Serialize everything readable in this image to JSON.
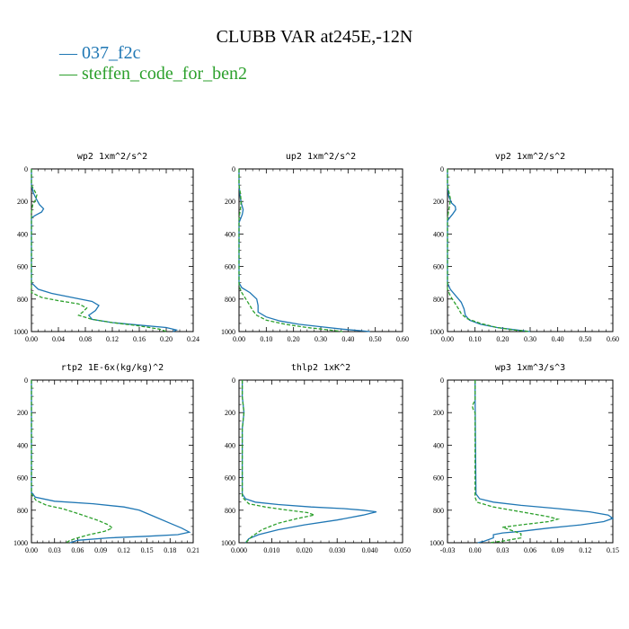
{
  "title": "CLUBB VAR at245E,-12N",
  "legend": [
    {
      "label": "037_f2c",
      "color": "#1f77b4"
    },
    {
      "label": "steffen_code_for_ben2",
      "color": "#2ca02c"
    }
  ],
  "chart_data": [
    {
      "type": "line",
      "title": "wp2  1xm^2/s^2",
      "xlim": [
        0,
        0.24
      ],
      "xticks": [
        "0.00",
        "0.04",
        "0.08",
        "0.12",
        "0.16",
        "0.20",
        "0.24"
      ],
      "ylim": [
        1000,
        0
      ],
      "yticks": [
        "0",
        "200",
        "400",
        "600",
        "800",
        "1000"
      ],
      "series": [
        {
          "name": "037_f2c",
          "x": [
            0,
            0,
            0.003,
            0.008,
            0.012,
            0.018,
            0.015,
            0.006,
            0.002,
            0,
            0,
            0.01,
            0.03,
            0.06,
            0.09,
            0.1,
            0.095,
            0.085,
            0.09,
            0.12,
            0.16,
            0.2,
            0.215,
            0.21
          ],
          "y": [
            0,
            100,
            150,
            190,
            220,
            245,
            265,
            285,
            295,
            300,
            700,
            740,
            765,
            790,
            815,
            840,
            870,
            900,
            925,
            945,
            960,
            975,
            990,
            1000
          ]
        },
        {
          "name": "steffen_code_for_ben2",
          "x": [
            0,
            0,
            0.004,
            0.008,
            0.006,
            0.002,
            0,
            0,
            0.015,
            0.04,
            0.07,
            0.082,
            0.076,
            0.07,
            0.09,
            0.12,
            0.16,
            0.19,
            0.2
          ],
          "y": [
            0,
            100,
            130,
            160,
            190,
            220,
            260,
            760,
            790,
            810,
            830,
            855,
            880,
            900,
            925,
            945,
            965,
            985,
            1000
          ]
        }
      ]
    },
    {
      "type": "line",
      "title": "up2  1xm^2/s^2",
      "xlim": [
        0,
        0.6
      ],
      "xticks": [
        "0.00",
        "0.10",
        "0.20",
        "0.30",
        "0.40",
        "0.50",
        "0.60"
      ],
      "ylim": [
        1000,
        0
      ],
      "yticks": [
        "0",
        "200",
        "400",
        "600",
        "800",
        "1000"
      ],
      "series": [
        {
          "name": "037_f2c",
          "x": [
            0,
            0,
            0.005,
            0.01,
            0.015,
            0.012,
            0.005,
            0,
            0,
            0.01,
            0.04,
            0.065,
            0.07,
            0.07,
            0.1,
            0.15,
            0.22,
            0.3,
            0.38,
            0.45,
            0.48
          ],
          "y": [
            0,
            100,
            180,
            220,
            250,
            280,
            310,
            330,
            700,
            730,
            760,
            800,
            840,
            880,
            910,
            935,
            955,
            970,
            985,
            995,
            1000
          ]
        },
        {
          "name": "steffen_code_for_ben2",
          "x": [
            0,
            0,
            0.005,
            0.008,
            0.005,
            0,
            0,
            0.01,
            0.025,
            0.04,
            0.05,
            0.065,
            0.1,
            0.17,
            0.25,
            0.33,
            0.38
          ],
          "y": [
            0,
            100,
            150,
            200,
            250,
            300,
            720,
            760,
            800,
            840,
            870,
            900,
            930,
            955,
            975,
            990,
            1000
          ]
        }
      ]
    },
    {
      "type": "line",
      "title": "vp2  1xm^2/s^2",
      "xlim": [
        0,
        0.6
      ],
      "xticks": [
        "0.00",
        "0.10",
        "0.20",
        "0.30",
        "0.40",
        "0.50",
        "0.60"
      ],
      "ylim": [
        1000,
        0
      ],
      "yticks": [
        "0",
        "200",
        "400",
        "600",
        "800",
        "1000"
      ],
      "series": [
        {
          "name": "037_f2c",
          "x": [
            0,
            0,
            0.005,
            0.015,
            0.028,
            0.03,
            0.02,
            0.008,
            0,
            0,
            0.01,
            0.03,
            0.05,
            0.06,
            0.065,
            0.08,
            0.12,
            0.18,
            0.25,
            0.3
          ],
          "y": [
            0,
            100,
            170,
            210,
            230,
            250,
            275,
            300,
            320,
            700,
            740,
            780,
            820,
            860,
            900,
            930,
            955,
            975,
            990,
            1000
          ]
        },
        {
          "name": "steffen_code_for_ben2",
          "x": [
            0,
            0,
            0.005,
            0.01,
            0.008,
            0.004,
            0,
            0,
            0.01,
            0.025,
            0.04,
            0.05,
            0.07,
            0.12,
            0.18,
            0.24,
            0.3
          ],
          "y": [
            0,
            100,
            140,
            180,
            220,
            260,
            300,
            740,
            780,
            820,
            860,
            890,
            920,
            950,
            975,
            990,
            1000
          ]
        }
      ]
    },
    {
      "type": "line",
      "title": "rtp2  1E-6x(kg/kg)^2",
      "xlim": [
        0,
        0.21
      ],
      "xticks": [
        "0.00",
        "0.03",
        "0.06",
        "0.09",
        "0.12",
        "0.15",
        "0.18",
        "0.21"
      ],
      "ylim": [
        1000,
        0
      ],
      "yticks": [
        "0",
        "200",
        "400",
        "600",
        "800",
        "1000"
      ],
      "series": [
        {
          "name": "037_f2c",
          "x": [
            0,
            0,
            0.005,
            0.03,
            0.08,
            0.12,
            0.14,
            0.16,
            0.18,
            0.195,
            0.205,
            0.19,
            0.15,
            0.1,
            0.06,
            0.05
          ],
          "y": [
            0,
            690,
            720,
            745,
            760,
            780,
            800,
            840,
            880,
            910,
            935,
            950,
            960,
            970,
            985,
            1000
          ]
        },
        {
          "name": "steffen_code_for_ben2",
          "x": [
            0,
            0,
            0.006,
            0.02,
            0.04,
            0.06,
            0.085,
            0.1,
            0.105,
            0.095,
            0.075,
            0.06,
            0.05,
            0.045
          ],
          "y": [
            0,
            700,
            740,
            770,
            790,
            820,
            860,
            890,
            910,
            930,
            950,
            970,
            985,
            1000
          ]
        }
      ]
    },
    {
      "type": "line",
      "title": "thlp2  1xK^2",
      "xlim": [
        0,
        0.05
      ],
      "xticks": [
        "0.000",
        "0.010",
        "0.020",
        "0.030",
        "0.040",
        "0.050"
      ],
      "ylim": [
        1000,
        0
      ],
      "yticks": [
        "0",
        "200",
        "400",
        "600",
        "800",
        "1000"
      ],
      "series": [
        {
          "name": "037_f2c",
          "x": [
            0.001,
            0.001,
            0.0015,
            0.001,
            0.001,
            0.002,
            0.005,
            0.012,
            0.022,
            0.032,
            0.038,
            0.042,
            0.038,
            0.03,
            0.02,
            0.012,
            0.006,
            0.003,
            0.002
          ],
          "y": [
            0,
            100,
            200,
            300,
            700,
            730,
            750,
            765,
            780,
            790,
            800,
            810,
            830,
            860,
            890,
            920,
            950,
            975,
            1000
          ]
        },
        {
          "name": "steffen_code_for_ben2",
          "x": [
            0.001,
            0.001,
            0.0015,
            0.001,
            0.001,
            0.003,
            0.008,
            0.015,
            0.021,
            0.023,
            0.018,
            0.012,
            0.007,
            0.004,
            0.002
          ],
          "y": [
            0,
            100,
            200,
            300,
            720,
            760,
            780,
            800,
            815,
            830,
            850,
            880,
            920,
            960,
            1000
          ]
        }
      ]
    },
    {
      "type": "line",
      "title": "wp3  1xm^3/s^3",
      "xlim": [
        -0.03,
        0.15
      ],
      "xticks": [
        "-0.03",
        "0.00",
        "0.03",
        "0.06",
        "0.09",
        "0.12",
        "0.15"
      ],
      "ylim": [
        1000,
        0
      ],
      "yticks": [
        "0",
        "200",
        "400",
        "600",
        "800",
        "1000"
      ],
      "series": [
        {
          "name": "037_f2c",
          "x": [
            0,
            0,
            0.001,
            0.005,
            0.02,
            0.05,
            0.09,
            0.125,
            0.145,
            0.15,
            0.14,
            0.115,
            0.08,
            0.05,
            0.03,
            0.02,
            0.02,
            0.01,
            0.003
          ],
          "y": [
            0,
            100,
            700,
            730,
            750,
            770,
            790,
            810,
            830,
            850,
            870,
            890,
            910,
            930,
            940,
            950,
            970,
            990,
            1000
          ]
        },
        {
          "name": "steffen_code_for_ben2",
          "x": [
            0,
            0,
            -0.003,
            -0.002,
            0,
            0,
            0.002,
            0.02,
            0.05,
            0.08,
            0.09,
            0.08,
            0.05,
            0.03,
            0.04,
            0.05,
            0.05,
            0.03,
            0.015
          ],
          "y": [
            0,
            120,
            160,
            180,
            200,
            720,
            750,
            780,
            810,
            840,
            855,
            870,
            890,
            905,
            925,
            945,
            970,
            990,
            1000
          ]
        }
      ]
    }
  ]
}
